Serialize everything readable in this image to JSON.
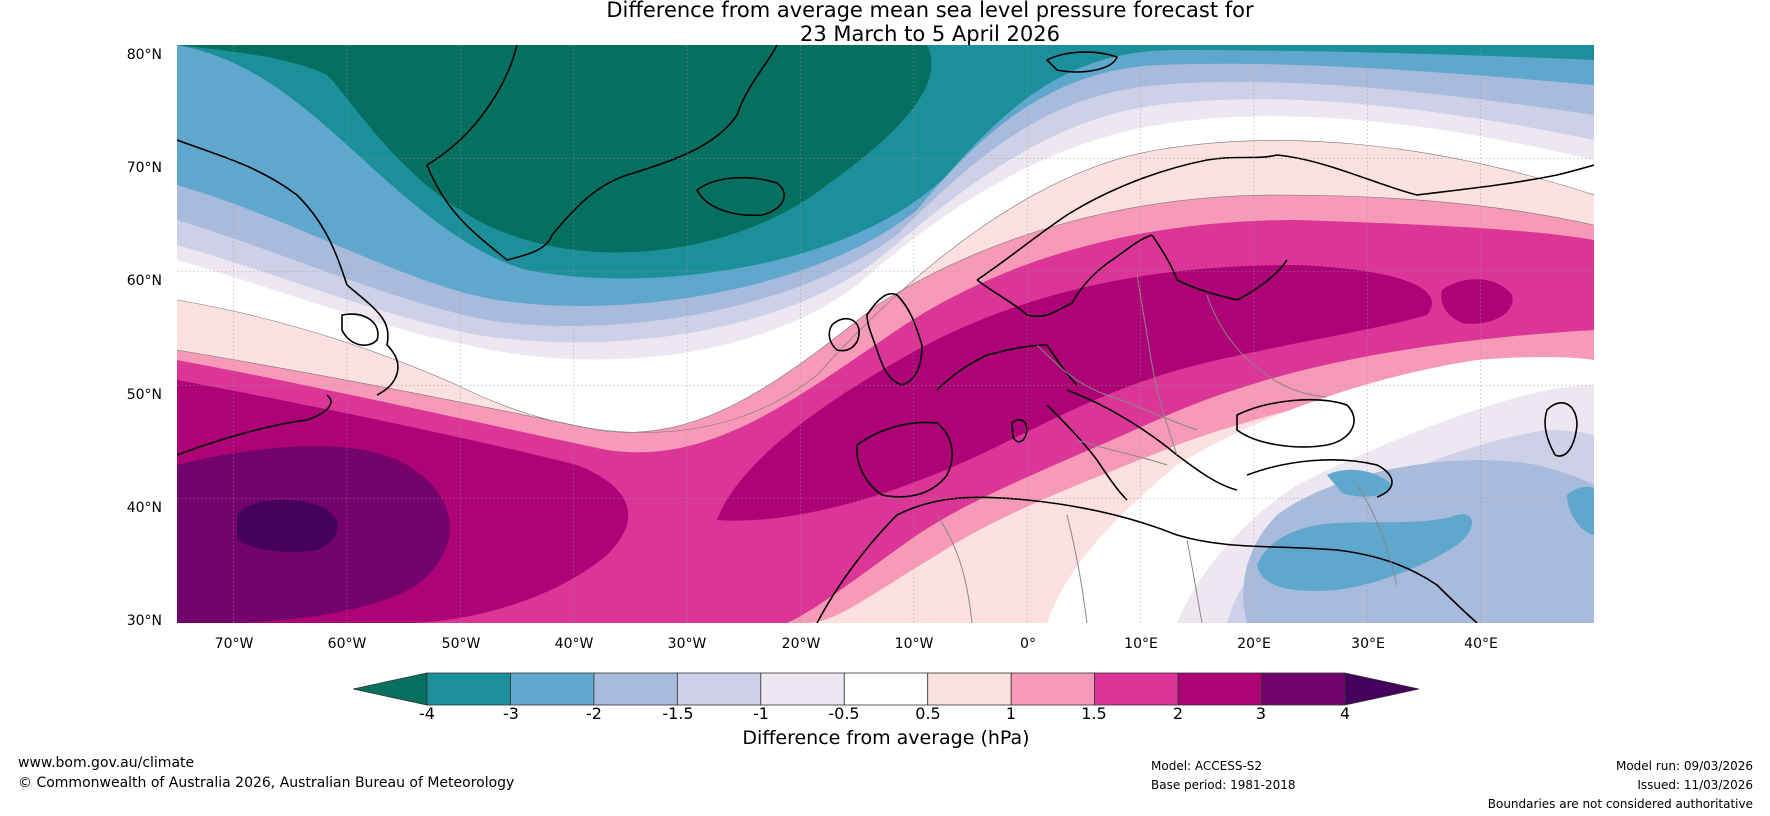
{
  "title": {
    "line1": "Difference from average mean sea level pressure forecast for",
    "line2": "23 March to 5 April 2026"
  },
  "map": {
    "latitude_labels": [
      "80°N",
      "70°N",
      "60°N",
      "50°N",
      "40°N",
      "30°N"
    ],
    "longitude_labels": [
      "70°W",
      "60°W",
      "50°W",
      "40°W",
      "30°W",
      "20°W",
      "10°W",
      "0°",
      "10°E",
      "20°E",
      "30°E",
      "40°E"
    ],
    "lat_range": [
      30,
      80
    ],
    "lon_range": [
      -75,
      50
    ],
    "features": {
      "low_anomaly_centre": "Greenland / North Atlantic",
      "high_anomaly_centres": [
        "Western North Atlantic",
        "Northern Europe / Scandinavia"
      ],
      "weak_low_anomaly": "Eastern Mediterranean"
    }
  },
  "colorbar": {
    "tick_labels": [
      "-4",
      "-3",
      "-2",
      "-1.5",
      "-1",
      "-0.5",
      "0.5",
      "1",
      "1.5",
      "2",
      "3",
      "4"
    ],
    "colors": [
      "#067060",
      "#1b8f9a",
      "#5fa7cc",
      "#a8bbdd",
      "#cdd0e6",
      "#ede7f2",
      "#ffffff",
      "#fde0e0",
      "#f79ab8",
      "#db3598",
      "#ad0376",
      "#74026c",
      "#45005e"
    ],
    "label": "Difference from average (hPa)"
  },
  "footer": {
    "website": "www.bom.gov.au/climate",
    "copyright": "© Commonwealth of Australia 2026, Australian Bureau of Meteorology",
    "model": "Model: ACCESS-S2",
    "base_period": "Base period: 1981-2018",
    "model_run": "Model run: 09/03/2026",
    "issued": "Issued: 11/03/2026",
    "disclaimer": "Boundaries are not considered authoritative"
  }
}
